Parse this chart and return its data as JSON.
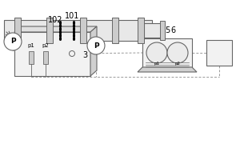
{
  "bg_color": "#ffffff",
  "line_color": "#666666",
  "dashed_color": "#999999",
  "fill_front": "#f2f2f2",
  "fill_top": "#e0e0e0",
  "fill_right": "#d0d0d0",
  "fill_pipe": "#e8e8e8",
  "fill_flange": "#cccccc",
  "label_102": "102",
  "label_5": "5",
  "label_101": "101",
  "label_3": "3",
  "label_6": "6",
  "label_p1": "p1",
  "label_p2": "p2",
  "label_P": "P"
}
